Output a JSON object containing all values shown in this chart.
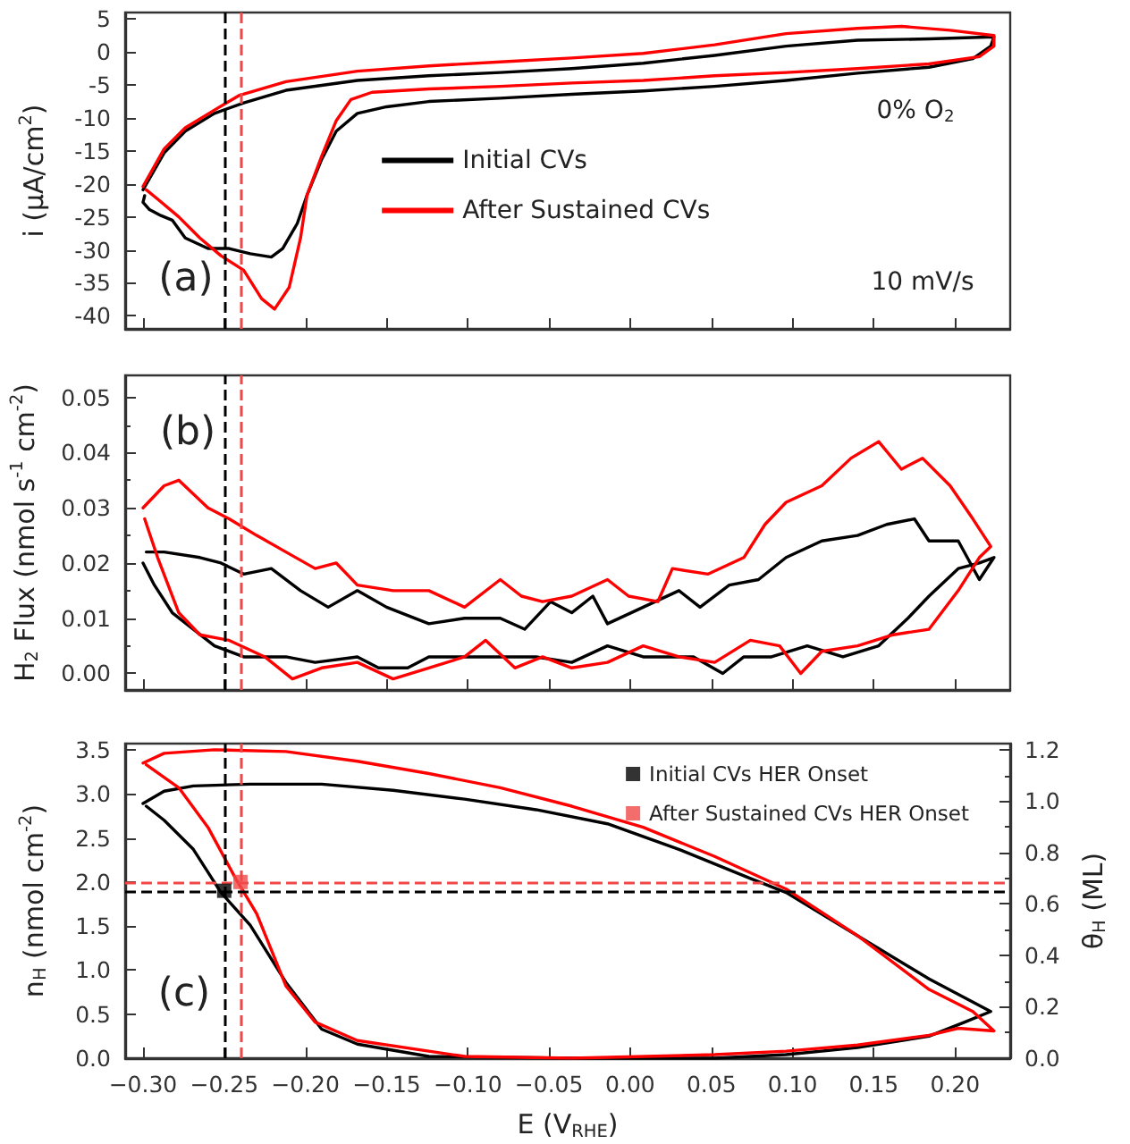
{
  "chart_data": [
    {
      "type": "line",
      "ylabel": "i (μA/cm$^{2}$)",
      "xlim": [
        -0.311,
        0.234
      ],
      "ylim": [
        -42,
        6
      ],
      "tick_labels": "y",
      "marker": "none",
      "legend": "center",
      "xticks": [
        -0.3,
        -0.25,
        -0.2,
        -0.15,
        -0.1,
        -0.05,
        0,
        0.05,
        0.1,
        0.15,
        0.2
      ],
      "yticks": [
        -40,
        -35,
        -30,
        -25,
        -20,
        -15,
        -10,
        -5,
        0,
        5
      ],
      "annotations": [
        "(a)",
        "0% O$_{2}$",
        "10 mV/s"
      ],
      "ref_lines": [
        {
          "axis": "x",
          "value": -0.25,
          "color": "#000000",
          "line_style": "dashed"
        },
        {
          "axis": "x",
          "value": -0.24,
          "color": "#f04848",
          "line_style": "dashed"
        }
      ],
      "series": [
        {
          "name": "Initial CVs",
          "color": "#000000",
          "x": [
            -0.3,
            -0.287,
            -0.274,
            -0.256,
            -0.238,
            -0.212,
            -0.168,
            -0.124,
            -0.08,
            -0.036,
            0.008,
            0.052,
            0.096,
            0.14,
            0.184,
            0.224,
            0.222,
            0.211,
            0.184,
            0.14,
            0.096,
            0.052,
            0.008,
            -0.036,
            -0.08,
            -0.124,
            -0.15,
            -0.168,
            -0.181,
            -0.19,
            -0.199,
            -0.205,
            -0.214,
            -0.221,
            -0.234,
            -0.247,
            -0.26,
            -0.274,
            -0.282,
            -0.289,
            -0.296,
            -0.3,
            -0.299
          ],
          "values": [
            -20.9,
            -15.3,
            -12.0,
            -9.3,
            -7.7,
            -5.8,
            -4.3,
            -3.6,
            -3.1,
            -2.5,
            -1.7,
            -0.5,
            0.9,
            1.8,
            2.0,
            2.3,
            0.9,
            -1.0,
            -2.3,
            -3.2,
            -4.3,
            -5.2,
            -5.9,
            -6.4,
            -7.0,
            -7.5,
            -8.3,
            -9.3,
            -12.0,
            -16.3,
            -21.7,
            -26.0,
            -29.8,
            -31.1,
            -30.6,
            -29.8,
            -29.8,
            -28.2,
            -25.5,
            -24.8,
            -23.9,
            -22.8,
            -21.8
          ]
        },
        {
          "name": "After Sustained CVs",
          "color": "#ff0000",
          "x": [
            -0.3,
            -0.287,
            -0.274,
            -0.256,
            -0.241,
            -0.212,
            -0.168,
            -0.124,
            -0.08,
            -0.036,
            0.008,
            0.052,
            0.096,
            0.14,
            0.167,
            0.197,
            0.224,
            0.224,
            0.215,
            0.184,
            0.14,
            0.096,
            0.052,
            0.008,
            -0.036,
            -0.08,
            -0.124,
            -0.159,
            -0.172,
            -0.181,
            -0.19,
            -0.199,
            -0.203,
            -0.21,
            -0.219,
            -0.227,
            -0.238,
            -0.252,
            -0.265,
            -0.278,
            -0.291,
            -0.298
          ],
          "values": [
            -20.4,
            -14.7,
            -11.5,
            -8.8,
            -6.6,
            -4.5,
            -2.9,
            -2.1,
            -1.5,
            -0.9,
            -0.2,
            1.1,
            2.8,
            3.6,
            3.9,
            3.3,
            2.5,
            0.9,
            -0.7,
            -1.8,
            -2.5,
            -3.1,
            -3.6,
            -4.3,
            -4.7,
            -5.2,
            -5.6,
            -6.1,
            -7.2,
            -10.4,
            -15.8,
            -21.7,
            -28.2,
            -35.7,
            -39.0,
            -37.4,
            -33.1,
            -30.9,
            -28.2,
            -25.0,
            -22.3,
            -20.9
          ]
        }
      ]
    },
    {
      "type": "line",
      "ylabel": "H$_{2}$ Flux (nmol s$^{-1}$ cm$^{-2}$)",
      "xlim": [
        -0.311,
        0.234
      ],
      "ylim": [
        -0.003,
        0.054
      ],
      "tick_labels": "y",
      "marker": "none",
      "xticks": [
        -0.3,
        -0.25,
        -0.2,
        -0.15,
        -0.1,
        -0.05,
        0,
        0.05,
        0.1,
        0.15,
        0.2
      ],
      "yticks": [
        {
          "value": 0,
          "label": "0.00"
        },
        {
          "value": 0.01,
          "label": "0.01"
        },
        {
          "value": 0.02,
          "label": "0.02"
        },
        {
          "value": 0.03,
          "label": "0.03"
        },
        {
          "value": 0.04,
          "label": "0.04"
        },
        {
          "value": 0.05,
          "label": "0.05"
        }
      ],
      "annotations": [
        "(b)"
      ],
      "ref_lines": [
        {
          "axis": "x",
          "value": -0.25,
          "color": "#000000",
          "line_style": "dashed"
        },
        {
          "axis": "x",
          "value": -0.24,
          "color": "#f04848",
          "line_style": "dashed"
        }
      ],
      "series": [
        {
          "color": "#000000",
          "x": [
            -0.298,
            -0.287,
            -0.265,
            -0.252,
            -0.238,
            -0.221,
            -0.203,
            -0.186,
            -0.168,
            -0.15,
            -0.124,
            -0.102,
            -0.08,
            -0.065,
            -0.049,
            -0.036,
            -0.023,
            -0.014,
            0.008,
            0.03,
            0.043,
            0.061,
            0.079,
            0.096,
            0.118,
            0.14,
            0.158,
            0.175,
            0.184,
            0.202,
            0.215,
            0.224,
            0.215,
            0.202,
            0.184,
            0.171,
            0.153,
            0.131,
            0.109,
            0.087,
            0.07,
            0.057,
            0.039,
            0.008,
            -0.014,
            -0.036,
            -0.058,
            -0.08,
            -0.102,
            -0.124,
            -0.137,
            -0.155,
            -0.168,
            -0.194,
            -0.212,
            -0.238,
            -0.256,
            -0.269,
            -0.282,
            -0.293,
            -0.3
          ],
          "values": [
            0.022,
            0.022,
            0.021,
            0.02,
            0.018,
            0.019,
            0.015,
            0.012,
            0.015,
            0.012,
            0.009,
            0.01,
            0.01,
            0.008,
            0.013,
            0.011,
            0.014,
            0.009,
            0.012,
            0.015,
            0.012,
            0.016,
            0.017,
            0.021,
            0.024,
            0.025,
            0.027,
            0.028,
            0.024,
            0.024,
            0.017,
            0.021,
            0.02,
            0.019,
            0.014,
            0.01,
            0.005,
            0.003,
            0.005,
            0.003,
            0.003,
            0.0,
            0.003,
            0.003,
            0.005,
            0.002,
            0.003,
            0.003,
            0.003,
            0.003,
            0.001,
            0.001,
            0.003,
            0.002,
            0.003,
            0.003,
            0.005,
            0.008,
            0.011,
            0.016,
            0.02
          ]
        },
        {
          "color": "#ff0000",
          "x": [
            -0.3,
            -0.287,
            -0.278,
            -0.26,
            -0.247,
            -0.23,
            -0.212,
            -0.194,
            -0.181,
            -0.168,
            -0.146,
            -0.124,
            -0.102,
            -0.08,
            -0.067,
            -0.054,
            -0.036,
            -0.014,
            -0.001,
            0.017,
            0.026,
            0.048,
            0.07,
            0.083,
            0.096,
            0.118,
            0.136,
            0.153,
            0.167,
            0.18,
            0.197,
            0.211,
            0.222,
            0.215,
            0.202,
            0.184,
            0.162,
            0.14,
            0.118,
            0.105,
            0.092,
            0.074,
            0.052,
            0.03,
            0.008,
            -0.014,
            -0.036,
            -0.054,
            -0.071,
            -0.089,
            -0.102,
            -0.124,
            -0.146,
            -0.168,
            -0.19,
            -0.208,
            -0.225,
            -0.247,
            -0.265,
            -0.278,
            -0.291,
            -0.299
          ],
          "values": [
            0.03,
            0.034,
            0.035,
            0.03,
            0.028,
            0.025,
            0.022,
            0.019,
            0.02,
            0.016,
            0.015,
            0.015,
            0.012,
            0.017,
            0.014,
            0.013,
            0.014,
            0.017,
            0.014,
            0.013,
            0.019,
            0.018,
            0.021,
            0.027,
            0.031,
            0.034,
            0.039,
            0.042,
            0.037,
            0.039,
            0.034,
            0.028,
            0.023,
            0.021,
            0.015,
            0.008,
            0.007,
            0.005,
            0.004,
            0.0,
            0.005,
            0.006,
            0.002,
            0.003,
            0.005,
            0.002,
            0.001,
            0.003,
            0.001,
            0.006,
            0.003,
            0.001,
            -0.001,
            0.002,
            0.001,
            -0.001,
            0.003,
            0.006,
            0.007,
            0.011,
            0.021,
            0.028
          ]
        }
      ]
    },
    {
      "type": "line",
      "xlabel": "E (V$_{RHE}$)",
      "ylabel": "n$_{H}$ (nmol cm$^{-2}$)",
      "y2label": "θ$_{H}$ (ML)",
      "xlim": [
        -0.311,
        0.234
      ],
      "ylim": [
        0,
        3.57
      ],
      "y2lim": [
        0,
        1.224
      ],
      "marker": "none",
      "legend": "top right",
      "xticks": [
        {
          "value": -0.3,
          "label": "−0.30"
        },
        {
          "value": -0.25,
          "label": "−0.25"
        },
        {
          "value": -0.2,
          "label": "−0.20"
        },
        {
          "value": -0.15,
          "label": "−0.15"
        },
        {
          "value": -0.1,
          "label": "−0.10"
        },
        {
          "value": -0.05,
          "label": "−0.05"
        },
        {
          "value": 0,
          "label": "0.00"
        },
        {
          "value": 0.05,
          "label": "0.05"
        },
        {
          "value": 0.1,
          "label": "0.10"
        },
        {
          "value": 0.15,
          "label": "0.15"
        },
        {
          "value": 0.2,
          "label": "0.20"
        }
      ],
      "yticks": [
        {
          "value": 0,
          "label": "0.0"
        },
        {
          "value": 0.5,
          "label": "0.5"
        },
        {
          "value": 1,
          "label": "1.0"
        },
        {
          "value": 1.5,
          "label": "1.5"
        },
        {
          "value": 2,
          "label": "2.0"
        },
        {
          "value": 2.5,
          "label": "2.5"
        },
        {
          "value": 3,
          "label": "3.0"
        },
        {
          "value": 3.5,
          "label": "3.5"
        }
      ],
      "y2ticks": [
        {
          "value": 0,
          "label": "0.0"
        },
        {
          "value": 0.2,
          "label": "0.2"
        },
        {
          "value": 0.4,
          "label": "0.4"
        },
        {
          "value": 0.6,
          "label": "0.6"
        },
        {
          "value": 0.8,
          "label": "0.8"
        },
        {
          "value": 1,
          "label": "1.0"
        },
        {
          "value": 1.2,
          "label": "1.2"
        }
      ],
      "annotations": [
        "(c)"
      ],
      "ref_lines": [
        {
          "axis": "x",
          "value": -0.25,
          "color": "#000000",
          "line_style": "dashed"
        },
        {
          "axis": "x",
          "value": -0.24,
          "color": "#f04848",
          "line_style": "dashed"
        },
        {
          "axis": "y",
          "value": 1.9,
          "color": "#000000",
          "line_style": "dashed"
        },
        {
          "axis": "y",
          "value": 2.0,
          "color": "#f04848",
          "line_style": "dashed"
        }
      ],
      "series": [
        {
          "color": "#000000",
          "x": [
            -0.3,
            -0.287,
            -0.269,
            -0.234,
            -0.19,
            -0.146,
            -0.102,
            -0.058,
            -0.014,
            0.03,
            0.074,
            0.096,
            0.14,
            0.184,
            0.222,
            0.206,
            0.184,
            0.14,
            0.096,
            0.052,
            -0.036,
            -0.124,
            -0.168,
            -0.19,
            -0.212,
            -0.234,
            -0.252,
            -0.269,
            -0.287,
            -0.298
          ],
          "values": [
            2.89,
            3.03,
            3.09,
            3.11,
            3.11,
            3.04,
            2.94,
            2.82,
            2.66,
            2.37,
            2.04,
            1.88,
            1.39,
            0.9,
            0.53,
            0.41,
            0.25,
            0.12,
            0.04,
            0.0,
            0.0,
            0.02,
            0.16,
            0.33,
            0.86,
            1.51,
            1.88,
            2.37,
            2.7,
            2.86
          ]
        },
        {
          "color": "#ff0000",
          "x": [
            -0.3,
            -0.287,
            -0.256,
            -0.212,
            -0.168,
            -0.124,
            -0.08,
            -0.036,
            0.008,
            0.052,
            0.096,
            0.14,
            0.184,
            0.211,
            0.224,
            0.202,
            0.184,
            0.14,
            0.096,
            0.052,
            -0.036,
            -0.102,
            -0.168,
            -0.194,
            -0.212,
            -0.23,
            -0.243,
            -0.26,
            -0.278,
            -0.298
          ],
          "values": [
            3.35,
            3.46,
            3.5,
            3.48,
            3.37,
            3.23,
            3.07,
            2.86,
            2.62,
            2.29,
            1.92,
            1.39,
            0.78,
            0.53,
            0.31,
            0.34,
            0.26,
            0.15,
            0.08,
            0.04,
            0.0,
            0.02,
            0.2,
            0.41,
            0.82,
            1.64,
            2.04,
            2.62,
            3.07,
            3.33
          ]
        },
        {
          "type": "scatter",
          "marker": "square",
          "name": "Initial CVs HER Onset",
          "color": "#000000",
          "x": [
            -0.25
          ],
          "values": [
            1.9
          ]
        },
        {
          "type": "scatter",
          "marker": "square",
          "name": "After Sustained CVs HER Onset",
          "color": "#f04848",
          "x": [
            -0.24
          ],
          "values": [
            2.0
          ]
        }
      ]
    }
  ]
}
